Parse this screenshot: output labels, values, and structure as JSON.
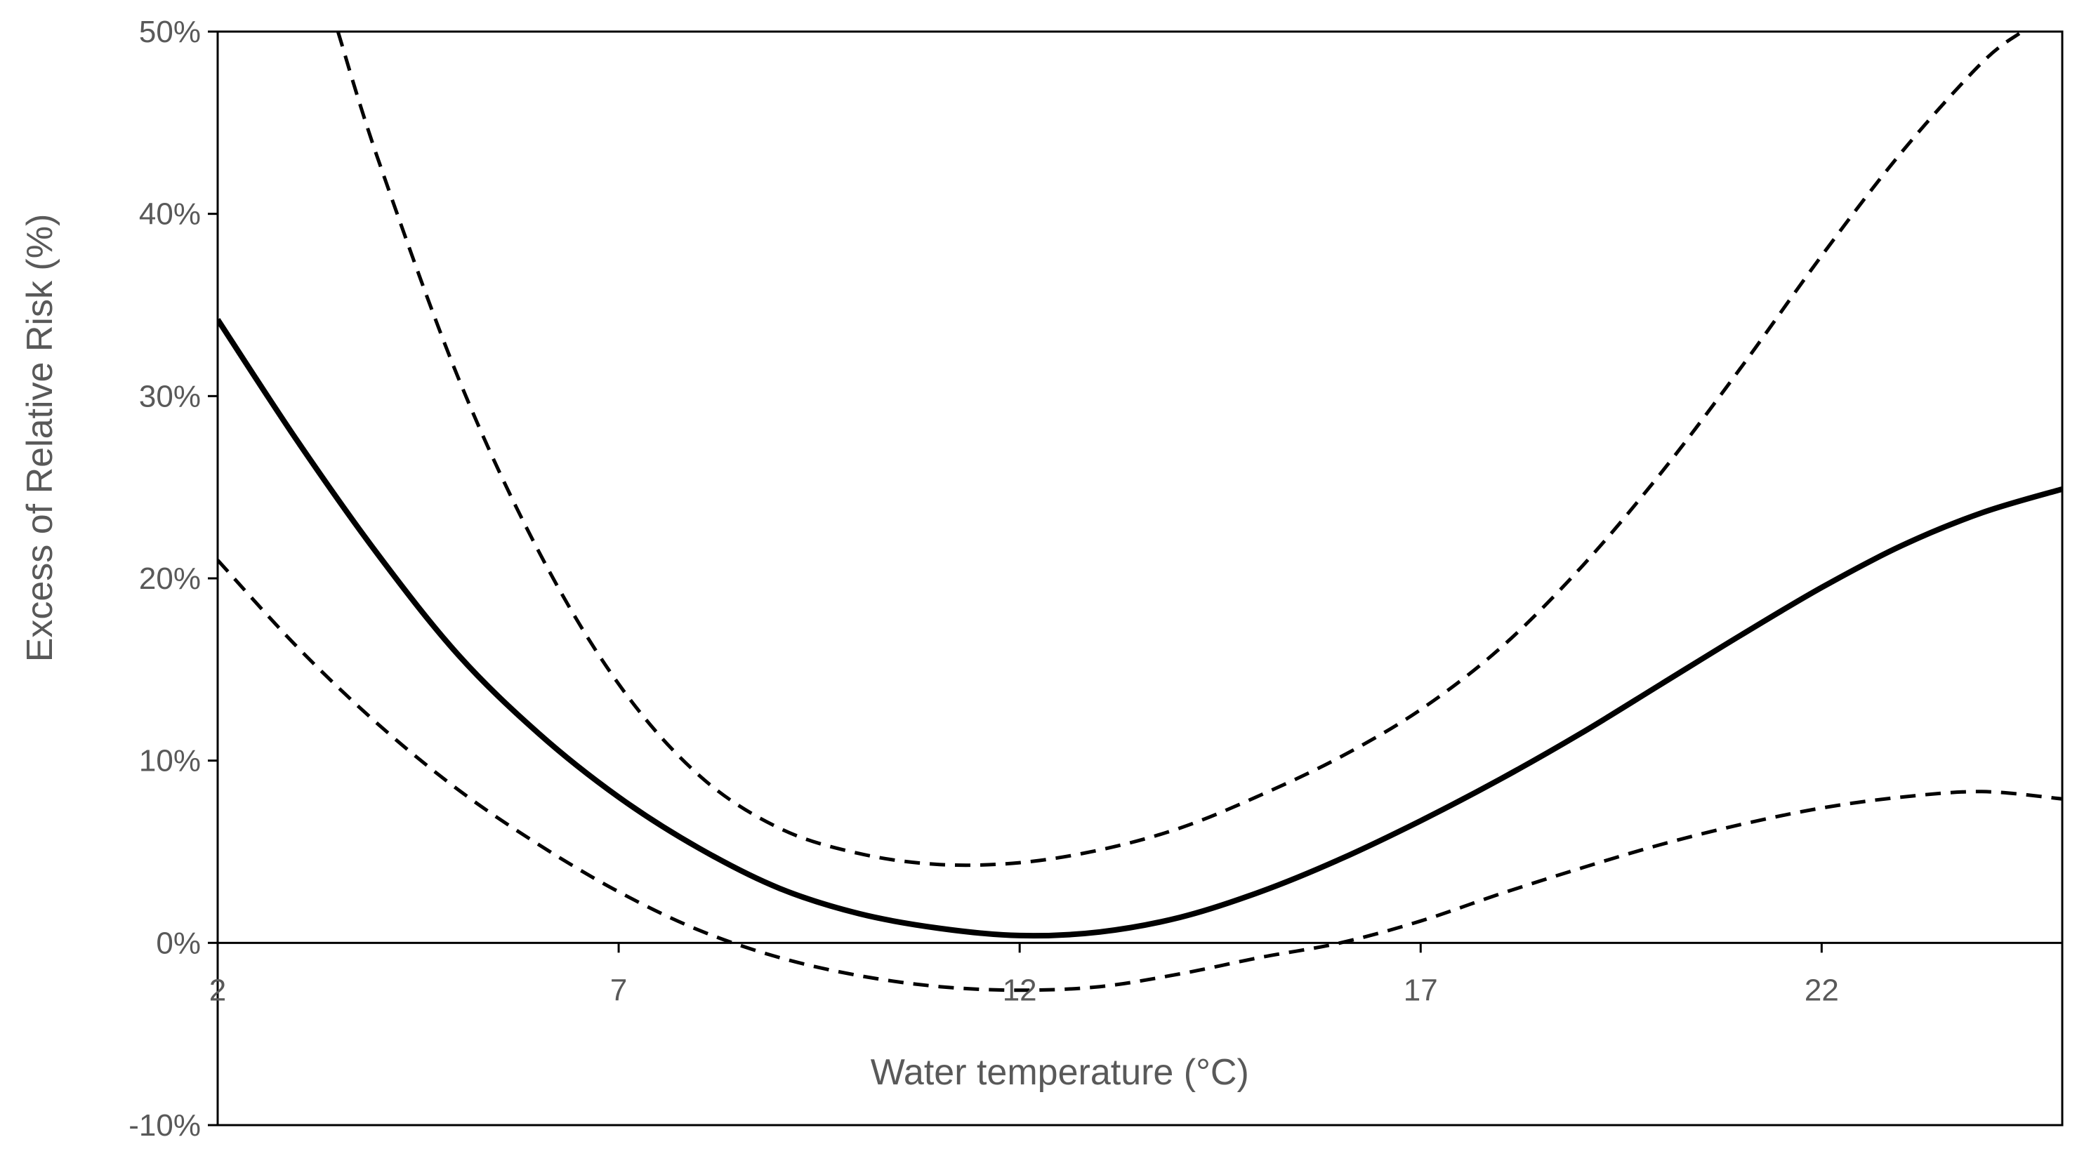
{
  "chart_data": {
    "type": "line",
    "title": "",
    "xlabel": "Water temperature (°C)",
    "ylabel": "Excess of Relative Risk (%)",
    "xlim": [
      2,
      25
    ],
    "ylim": [
      -10,
      50
    ],
    "xticks": [
      2,
      7,
      12,
      17,
      22
    ],
    "xtick_labels": [
      "2",
      "7",
      "12",
      "17",
      "22"
    ],
    "yticks": [
      -10,
      0,
      10,
      20,
      30,
      40,
      50
    ],
    "ytick_labels": [
      "-10%",
      "0%",
      "10%",
      "20%",
      "30%",
      "40%",
      "50%"
    ],
    "grid": false,
    "legend": "none",
    "colors": {
      "line": "#000000",
      "label_text": "#595959",
      "frame": "#000000"
    },
    "series": [
      {
        "style": "solid",
        "x": [
          2,
          3,
          4,
          5,
          6,
          7,
          8,
          9,
          10,
          11,
          12,
          13,
          14,
          15,
          16,
          17,
          18,
          19,
          20,
          21,
          22,
          23,
          24,
          25
        ],
        "y": [
          34.2,
          27.5,
          21.3,
          15.8,
          11.5,
          8.0,
          5.2,
          3.0,
          1.6,
          0.8,
          0.4,
          0.6,
          1.4,
          2.8,
          4.6,
          6.7,
          9.0,
          11.5,
          14.2,
          16.9,
          19.5,
          21.8,
          23.6,
          24.9
        ]
      },
      {
        "style": "dashed",
        "x": [
          3.5,
          4,
          5,
          6,
          7,
          8,
          9,
          10,
          11,
          12,
          13,
          14,
          15,
          16,
          17,
          18,
          19,
          20,
          21,
          22,
          23,
          24,
          24.5
        ],
        "y": [
          50,
          43.0,
          31.0,
          21.5,
          14.2,
          9.2,
          6.3,
          4.9,
          4.3,
          4.4,
          5.1,
          6.3,
          8.1,
          10.2,
          12.8,
          16.2,
          20.6,
          25.8,
          31.6,
          37.7,
          43.4,
          48.3,
          50
        ]
      },
      {
        "style": "dashed",
        "x": [
          2,
          3,
          4,
          5,
          6,
          7,
          8,
          9,
          10,
          11,
          12,
          13,
          14,
          15,
          16,
          17,
          18,
          19,
          20,
          21,
          22,
          23,
          24,
          25
        ],
        "y": [
          21.0,
          16.2,
          12.0,
          8.4,
          5.4,
          2.8,
          0.7,
          -0.8,
          -1.8,
          -2.4,
          -2.6,
          -2.4,
          -1.7,
          -0.8,
          0.0,
          1.2,
          2.7,
          4.1,
          5.4,
          6.5,
          7.4,
          8.0,
          8.3,
          7.9
        ]
      }
    ]
  }
}
